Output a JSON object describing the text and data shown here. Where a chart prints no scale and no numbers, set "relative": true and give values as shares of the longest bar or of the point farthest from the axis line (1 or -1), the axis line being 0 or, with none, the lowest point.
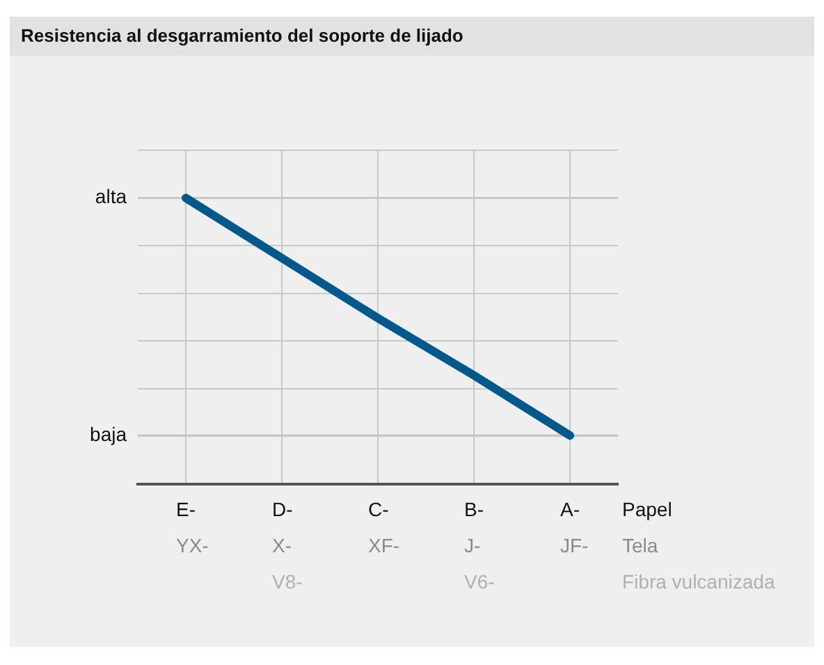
{
  "chart_data": {
    "type": "line",
    "title": "Resistencia al desgarramiento del soporte de lijado",
    "categories": [
      "E-\nYX-",
      "D-\nX-\nV8-",
      "C-\nXF-",
      "B-\nJ-\nV6-",
      "A-\nJF-"
    ],
    "xlabel": "Papel\nTela\nFibra vulcanizada",
    "relative": true,
    "series": [
      {
        "color": "#00598a",
        "values": [
          1,
          0.79,
          0.58,
          0.38,
          0.17
        ]
      }
    ],
    "ref_lines": [
      {
        "axis": "y",
        "value": 1,
        "label": "alta",
        "color": "#c8c8c8"
      },
      {
        "axis": "y",
        "value": 0.17,
        "label": "baja",
        "color": "#c8c8c8"
      }
    ],
    "grid": true,
    "legend": false,
    "marker": "none",
    "line_style": "solid"
  }
}
